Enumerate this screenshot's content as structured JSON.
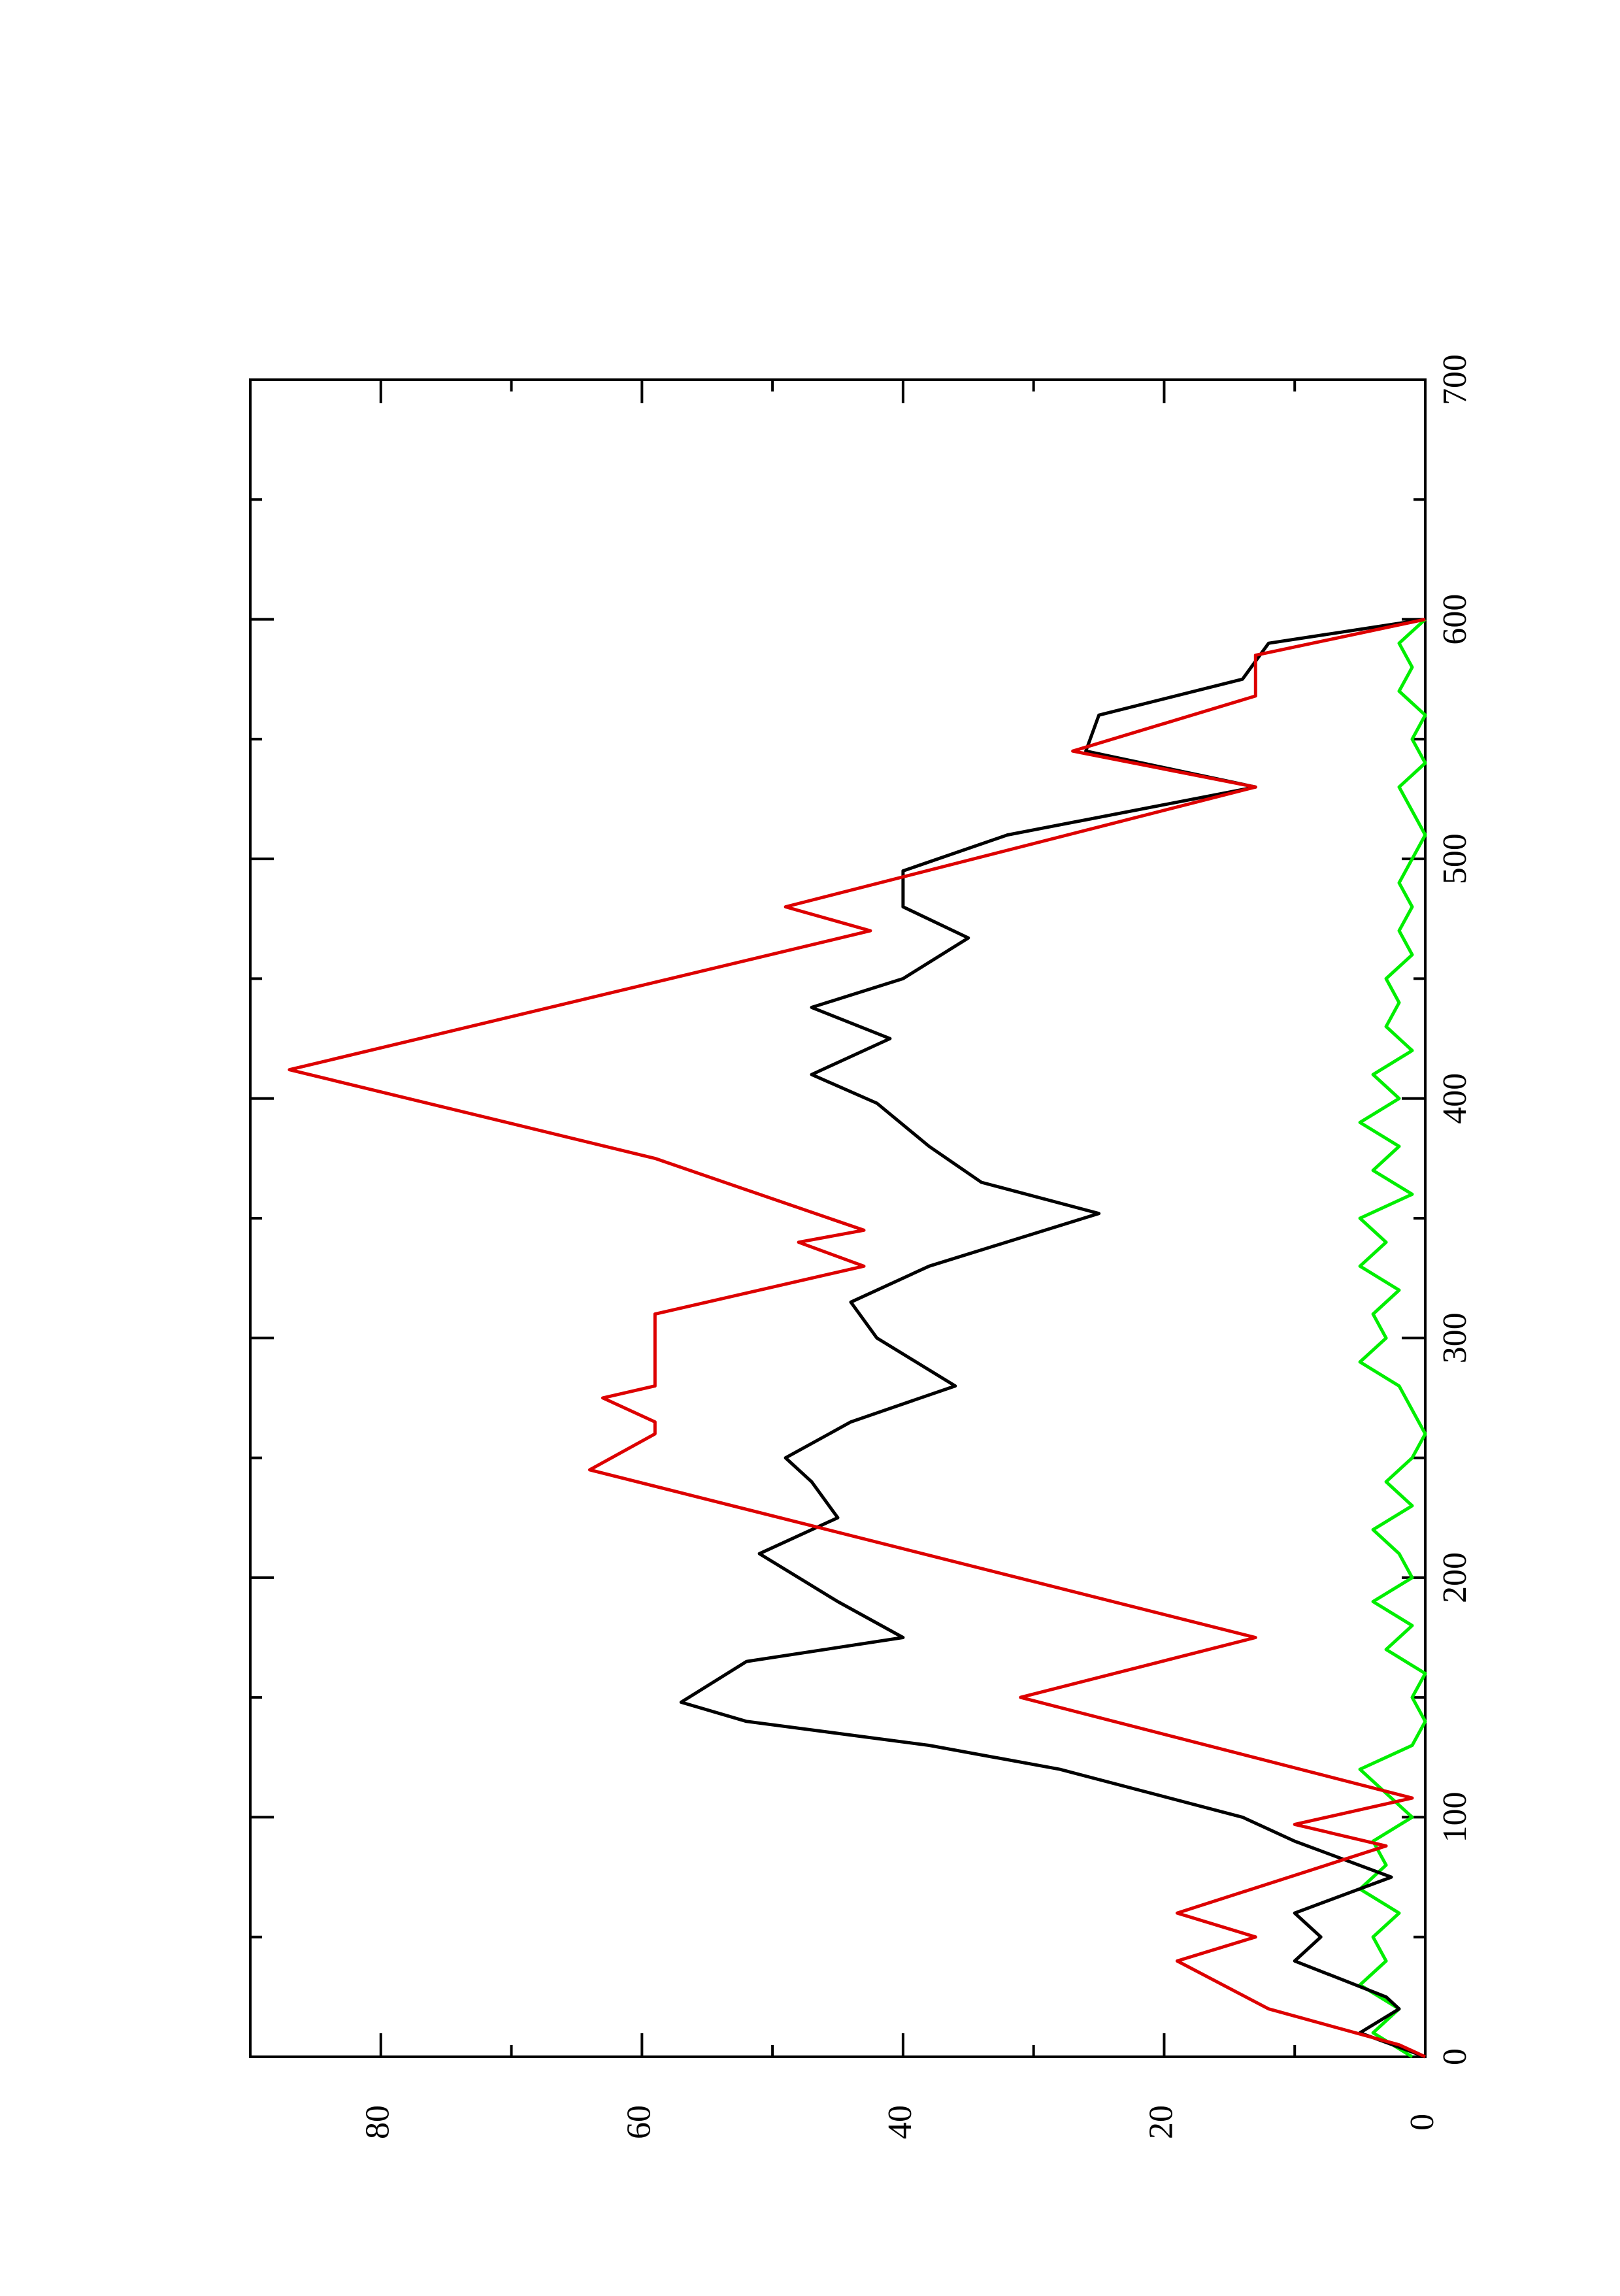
{
  "chart_data": {
    "type": "line",
    "xlim": [
      0,
      700
    ],
    "xticks": [
      0,
      100,
      200,
      300,
      400,
      500,
      600,
      700
    ],
    "xticks_minor": [
      50,
      150,
      250,
      350,
      450,
      550,
      650
    ],
    "ylim": [
      0,
      90
    ],
    "yticks": [
      0,
      20,
      40,
      60,
      80
    ],
    "yticks_minor": [
      10,
      30,
      50,
      70
    ],
    "series": [
      {
        "color": "#000000",
        "x": [
          0,
          10,
          20,
          25,
          40,
          50,
          60,
          75,
          90,
          100,
          120,
          130,
          140,
          148,
          165,
          175,
          190,
          210,
          225,
          240,
          250,
          265,
          280,
          300,
          315,
          330,
          352,
          365,
          380,
          398,
          410,
          425,
          438,
          450,
          467,
          480,
          495,
          510,
          530,
          545,
          560,
          575,
          590,
          600
        ],
        "values": [
          0,
          5,
          2,
          3,
          10,
          8,
          10,
          2.6,
          10,
          14,
          28,
          38,
          52,
          57,
          52,
          40,
          45,
          51,
          45,
          47,
          49,
          44,
          36,
          42,
          44,
          38,
          25,
          34,
          38,
          42,
          47,
          41,
          47,
          40,
          35,
          40,
          40,
          32,
          13,
          26,
          25,
          14,
          12,
          0
        ]
      },
      {
        "color": "#dd0000",
        "x": [
          0,
          5,
          20,
          40,
          50,
          60,
          88,
          97,
          108,
          150,
          175,
          245,
          260,
          265,
          275,
          280,
          310,
          330,
          340,
          345,
          375,
          412,
          470,
          480,
          530,
          545,
          568,
          585,
          600
        ],
        "values": [
          0,
          2,
          12,
          19,
          13,
          19,
          3,
          10,
          1,
          31,
          13,
          64,
          59,
          59,
          63,
          59,
          59,
          43,
          48,
          43,
          59,
          87,
          42.5,
          49,
          13,
          27,
          13,
          13,
          0
        ]
      },
      {
        "color": "#00ee00",
        "x": [
          0,
          10,
          20,
          30,
          40,
          50,
          60,
          70,
          80,
          90,
          100,
          110,
          120,
          130,
          140,
          150,
          160,
          170,
          180,
          190,
          200,
          210,
          220,
          230,
          240,
          250,
          260,
          270,
          280,
          290,
          300,
          310,
          320,
          330,
          340,
          350,
          360,
          370,
          380,
          390,
          400,
          410,
          420,
          430,
          440,
          450,
          460,
          470,
          480,
          490,
          500,
          510,
          520,
          530,
          540,
          550,
          560,
          570,
          580,
          590,
          600
        ],
        "values": [
          1,
          4,
          2,
          5,
          3,
          4,
          2,
          5,
          3,
          4,
          1,
          3,
          5,
          1,
          0,
          1,
          0,
          3,
          1,
          4,
          1,
          2,
          4,
          1,
          3,
          1,
          0,
          1,
          2,
          5,
          3,
          4,
          2,
          5,
          3,
          5,
          1,
          4,
          2,
          5,
          2,
          4,
          1,
          3,
          2,
          3,
          1,
          2,
          1,
          2,
          1,
          0,
          1,
          2,
          0,
          1,
          0,
          2,
          1,
          2,
          0
        ]
      }
    ]
  }
}
